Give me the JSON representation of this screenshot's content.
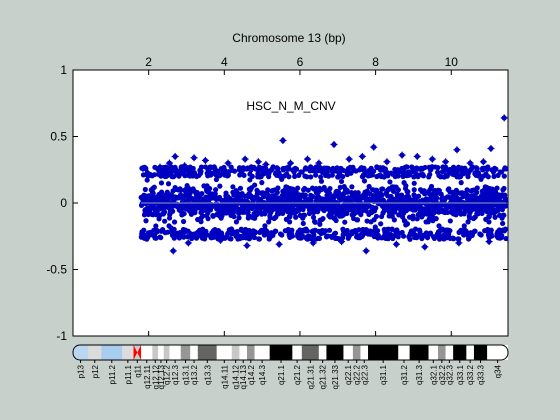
{
  "window": {
    "background": "#c8d0cc"
  },
  "chart_data": {
    "type": "scatter",
    "title": "Chromosome 13 (bp)",
    "annotation": "HSC_N_M_CNV",
    "xlim": [
      0,
      11.5
    ],
    "x_unit_note": "",
    "ylim": [
      -1,
      1
    ],
    "x_ticks": [
      2,
      4,
      6,
      8,
      10
    ],
    "y_ticks": [
      -1,
      -0.5,
      0,
      0.5,
      1
    ],
    "y_tick_labels": [
      "-1",
      "-0.5",
      "0",
      "0.5",
      "1"
    ],
    "x_tick_labels": [
      "2",
      "4",
      "6",
      "8",
      "10"
    ],
    "grid": false,
    "marker_color": "#0000c0",
    "baseline_color": "#8fa0b8",
    "data_range": [
      1.8,
      11.45
    ],
    "typical_spread": [
      -0.26,
      0.26
    ],
    "outliers": [
      {
        "x": 1.85,
        "y": 0.26
      },
      {
        "x": 2.3,
        "y": 0.27
      },
      {
        "x": 2.55,
        "y": 0.3
      },
      {
        "x": 2.7,
        "y": 0.35
      },
      {
        "x": 2.95,
        "y": 0.28
      },
      {
        "x": 3.2,
        "y": 0.34
      },
      {
        "x": 3.5,
        "y": 0.32
      },
      {
        "x": 4.1,
        "y": 0.3
      },
      {
        "x": 4.55,
        "y": 0.33
      },
      {
        "x": 4.9,
        "y": 0.31
      },
      {
        "x": 5.1,
        "y": 0.29
      },
      {
        "x": 5.55,
        "y": 0.47
      },
      {
        "x": 5.75,
        "y": 0.3
      },
      {
        "x": 6.2,
        "y": 0.33
      },
      {
        "x": 6.5,
        "y": 0.3
      },
      {
        "x": 6.9,
        "y": 0.44
      },
      {
        "x": 7.3,
        "y": 0.33
      },
      {
        "x": 7.65,
        "y": 0.35
      },
      {
        "x": 7.95,
        "y": 0.42
      },
      {
        "x": 8.3,
        "y": 0.31
      },
      {
        "x": 8.7,
        "y": 0.36
      },
      {
        "x": 9.1,
        "y": 0.35
      },
      {
        "x": 9.5,
        "y": 0.33
      },
      {
        "x": 9.85,
        "y": 0.31
      },
      {
        "x": 10.15,
        "y": 0.4
      },
      {
        "x": 10.5,
        "y": 0.3
      },
      {
        "x": 10.85,
        "y": 0.31
      },
      {
        "x": 11.05,
        "y": 0.41
      },
      {
        "x": 11.4,
        "y": 0.64
      },
      {
        "x": 2.65,
        "y": -0.36
      },
      {
        "x": 3.05,
        "y": -0.3
      },
      {
        "x": 3.9,
        "y": -0.28
      },
      {
        "x": 4.6,
        "y": -0.32
      },
      {
        "x": 5.45,
        "y": -0.31
      },
      {
        "x": 6.35,
        "y": -0.3
      },
      {
        "x": 7.1,
        "y": -0.29
      },
      {
        "x": 7.75,
        "y": -0.36
      },
      {
        "x": 8.55,
        "y": -0.31
      },
      {
        "x": 9.3,
        "y": -0.33
      },
      {
        "x": 10.2,
        "y": -0.3
      },
      {
        "x": 11.0,
        "y": -0.29
      }
    ]
  },
  "ideogram": {
    "bands": [
      {
        "label": "p13",
        "start": 0.0,
        "end": 0.4,
        "stain": "acen-p"
      },
      {
        "label": "p12",
        "start": 0.4,
        "end": 0.75,
        "stain": "gvar"
      },
      {
        "label": "p11.2",
        "start": 0.75,
        "end": 1.3,
        "stain": "stalk"
      },
      {
        "label": "p11.1",
        "start": 1.3,
        "end": 1.6,
        "stain": "gvar"
      },
      {
        "label": "q11",
        "start": 1.6,
        "end": 1.8,
        "stain": "centromere"
      },
      {
        "label": "q12.11",
        "start": 1.8,
        "end": 2.1,
        "stain": "gneg"
      },
      {
        "label": "q12.12",
        "start": 2.1,
        "end": 2.25,
        "stain": "gpos25"
      },
      {
        "label": "q12.13",
        "start": 2.25,
        "end": 2.4,
        "stain": "gneg"
      },
      {
        "label": "q12.2",
        "start": 2.4,
        "end": 2.55,
        "stain": "gpos25"
      },
      {
        "label": "q12.3",
        "start": 2.55,
        "end": 2.85,
        "stain": "gneg"
      },
      {
        "label": "q13.1",
        "start": 2.85,
        "end": 3.1,
        "stain": "gpos50"
      },
      {
        "label": "q13.2",
        "start": 3.1,
        "end": 3.3,
        "stain": "gneg"
      },
      {
        "label": "q13.3",
        "start": 3.3,
        "end": 3.8,
        "stain": "gpos75"
      },
      {
        "label": "q14.11",
        "start": 3.8,
        "end": 4.2,
        "stain": "gneg"
      },
      {
        "label": "q14.12",
        "start": 4.2,
        "end": 4.4,
        "stain": "gpos25"
      },
      {
        "label": "q14.13",
        "start": 4.4,
        "end": 4.6,
        "stain": "gneg"
      },
      {
        "label": "q14.2",
        "start": 4.6,
        "end": 4.8,
        "stain": "gpos50"
      },
      {
        "label": "q14.3",
        "start": 4.8,
        "end": 5.2,
        "stain": "gneg"
      },
      {
        "label": "q21.1",
        "start": 5.2,
        "end": 5.8,
        "stain": "gpos100"
      },
      {
        "label": "q21.2",
        "start": 5.8,
        "end": 6.05,
        "stain": "gneg"
      },
      {
        "label": "q21.31",
        "start": 6.05,
        "end": 6.5,
        "stain": "gpos75"
      },
      {
        "label": "q21.32",
        "start": 6.5,
        "end": 6.7,
        "stain": "gneg"
      },
      {
        "label": "q21.33",
        "start": 6.7,
        "end": 7.15,
        "stain": "gpos100"
      },
      {
        "label": "q22.1",
        "start": 7.15,
        "end": 7.4,
        "stain": "gneg"
      },
      {
        "label": "q22.2",
        "start": 7.4,
        "end": 7.6,
        "stain": "gpos50"
      },
      {
        "label": "q22.3",
        "start": 7.6,
        "end": 7.8,
        "stain": "gneg"
      },
      {
        "label": "q31.1",
        "start": 7.8,
        "end": 8.6,
        "stain": "gpos100"
      },
      {
        "label": "q31.2",
        "start": 8.6,
        "end": 8.9,
        "stain": "gneg"
      },
      {
        "label": "q31.3",
        "start": 8.9,
        "end": 9.4,
        "stain": "gpos100"
      },
      {
        "label": "q32.1",
        "start": 9.4,
        "end": 9.65,
        "stain": "gneg"
      },
      {
        "label": "q32.2",
        "start": 9.65,
        "end": 9.85,
        "stain": "gpos50"
      },
      {
        "label": "q32.3",
        "start": 9.85,
        "end": 10.05,
        "stain": "gneg"
      },
      {
        "label": "q33.1",
        "start": 10.05,
        "end": 10.4,
        "stain": "gpos100"
      },
      {
        "label": "q33.2",
        "start": 10.4,
        "end": 10.6,
        "stain": "gneg"
      },
      {
        "label": "q33.3",
        "start": 10.6,
        "end": 10.95,
        "stain": "gpos100"
      },
      {
        "label": "q34",
        "start": 10.95,
        "end": 11.5,
        "stain": "gneg"
      }
    ],
    "stain_colors": {
      "acen-p": "#b9d7f0",
      "gvar": "#dcdcdc",
      "stalk": "#a9cdee",
      "centromere": "#ff0000",
      "gneg": "#ffffff",
      "gpos25": "#c8c8c8",
      "gpos50": "#969696",
      "gpos75": "#646464",
      "gpos100": "#000000"
    }
  }
}
